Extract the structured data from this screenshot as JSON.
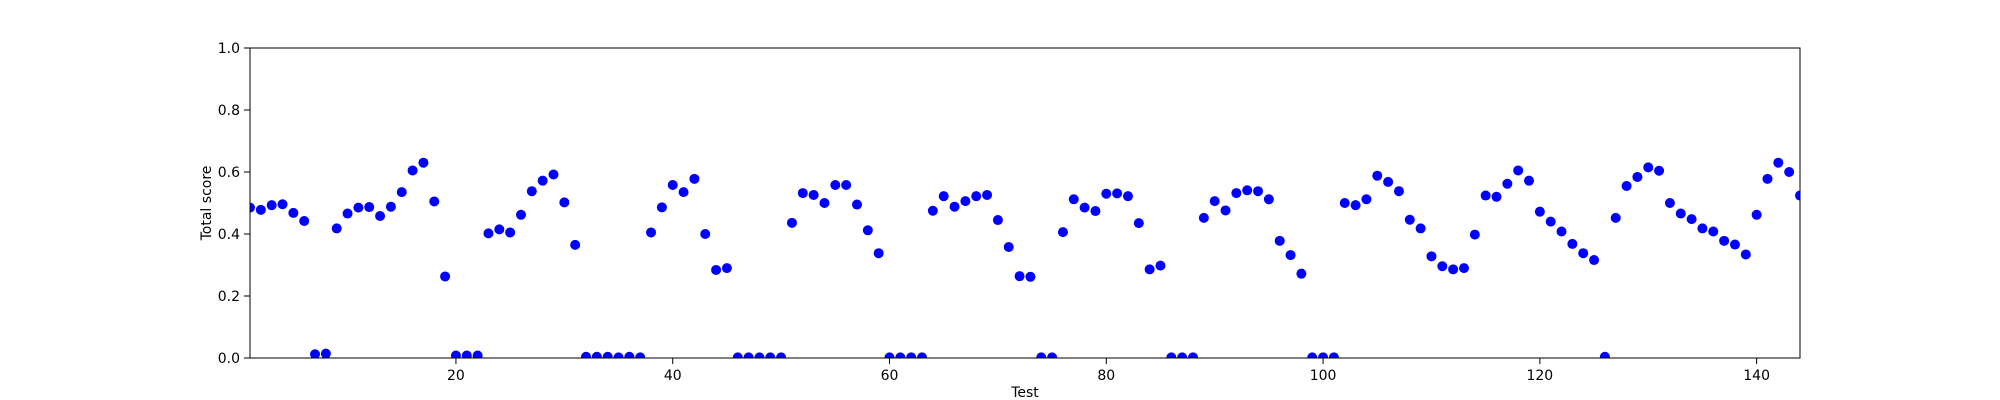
{
  "chart_data": {
    "type": "scatter",
    "xlabel": "Test",
    "ylabel": "Total score",
    "xlim": [
      1,
      144
    ],
    "ylim": [
      0.0,
      1.0
    ],
    "xticks": [
      20,
      40,
      60,
      80,
      100,
      120,
      140
    ],
    "xtick_labels": [
      "20",
      "40",
      "60",
      "80",
      "100",
      "120",
      "140"
    ],
    "yticks": [
      0.0,
      0.2,
      0.4,
      0.6,
      0.8,
      1.0
    ],
    "ytick_labels": [
      "0.0",
      "0.2",
      "0.4",
      "0.6",
      "0.8",
      "1.0"
    ],
    "grid": false,
    "colors": {
      "marker": "#0000ff",
      "axis": "#000000"
    },
    "series": [
      {
        "x": [
          1,
          2,
          3,
          4,
          5,
          6,
          7,
          8,
          9,
          10,
          11,
          12,
          13,
          14,
          15,
          16,
          17,
          18,
          19,
          20,
          21,
          22,
          23,
          24,
          25,
          26,
          27,
          28,
          29,
          30,
          31,
          32,
          33,
          34,
          35,
          36,
          37,
          38,
          39,
          40,
          41,
          42,
          43,
          44,
          45,
          46,
          47,
          48,
          49,
          50,
          51,
          52,
          53,
          54,
          55,
          56,
          57,
          58,
          59,
          60,
          61,
          62,
          63,
          64,
          65,
          66,
          67,
          68,
          69,
          70,
          71,
          72,
          73,
          74,
          75,
          76,
          77,
          78,
          79,
          80,
          81,
          82,
          83,
          84,
          85,
          86,
          87,
          88,
          89,
          90,
          91,
          92,
          93,
          94,
          95,
          96,
          97,
          98,
          99,
          100,
          101,
          102,
          103,
          104,
          105,
          106,
          107,
          108,
          109,
          110,
          111,
          112,
          113,
          114,
          115,
          116,
          117,
          118,
          119,
          120,
          121,
          122,
          123,
          124,
          125,
          126,
          127,
          128,
          129,
          130,
          131,
          132,
          133,
          134,
          135,
          136,
          137,
          138,
          139,
          140,
          141,
          142,
          143,
          144
        ],
        "y": [
          0.485,
          0.478,
          0.493,
          0.496,
          0.468,
          0.442,
          0.012,
          0.014,
          0.418,
          0.466,
          0.485,
          0.487,
          0.458,
          0.488,
          0.535,
          0.605,
          0.63,
          0.505,
          0.263,
          0.008,
          0.008,
          0.008,
          0.402,
          0.415,
          0.405,
          0.462,
          0.538,
          0.572,
          0.592,
          0.502,
          0.365,
          0.004,
          0.004,
          0.004,
          0.002,
          0.004,
          0.002,
          0.405,
          0.486,
          0.558,
          0.535,
          0.578,
          0.4,
          0.284,
          0.29,
          0.002,
          0.002,
          0.002,
          0.002,
          0.002,
          0.436,
          0.532,
          0.526,
          0.5,
          0.558,
          0.558,
          0.495,
          0.412,
          0.338,
          0.002,
          0.002,
          0.002,
          0.002,
          0.475,
          0.522,
          0.488,
          0.506,
          0.522,
          0.526,
          0.445,
          0.358,
          0.264,
          0.262,
          0.002,
          0.002,
          0.406,
          0.512,
          0.485,
          0.474,
          0.53,
          0.531,
          0.522,
          0.435,
          0.286,
          0.298,
          0.002,
          0.002,
          0.002,
          0.452,
          0.506,
          0.476,
          0.532,
          0.541,
          0.538,
          0.512,
          0.378,
          0.332,
          0.272,
          0.002,
          0.002,
          0.002,
          0.5,
          0.493,
          0.512,
          0.588,
          0.568,
          0.538,
          0.446,
          0.418,
          0.328,
          0.296,
          0.286,
          0.29,
          0.398,
          0.524,
          0.52,
          0.562,
          0.605,
          0.572,
          0.472,
          0.44,
          0.408,
          0.368,
          0.338,
          0.316,
          0.004,
          0.452,
          0.555,
          0.584,
          0.615,
          0.604,
          0.5,
          0.466,
          0.448,
          0.418,
          0.408,
          0.378,
          0.366,
          0.334,
          0.462,
          0.578,
          0.63,
          0.6,
          0.524
        ]
      }
    ]
  }
}
